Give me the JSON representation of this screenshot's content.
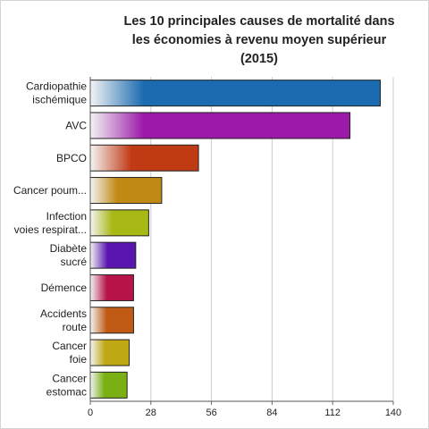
{
  "chart_data": {
    "type": "bar",
    "orientation": "horizontal",
    "title_lines": [
      "Les 10 principales causes de mortalité dans",
      "les économies à revenu moyen supérieur",
      "(2015)"
    ],
    "categories": [
      [
        "Cardiopathie",
        "ischémique"
      ],
      [
        "AVC"
      ],
      [
        "BPCO"
      ],
      [
        "Cancer poum..."
      ],
      [
        "Infection",
        "voies respirat..."
      ],
      [
        "Diabète",
        "sucré"
      ],
      [
        "Démence"
      ],
      [
        "Accidents",
        "route"
      ],
      [
        "Cancer",
        "foie"
      ],
      [
        "Cancer",
        "estomac"
      ]
    ],
    "values": [
      134,
      120,
      50,
      33,
      27,
      21,
      20,
      20,
      18,
      17
    ],
    "colors": [
      "#1a6bb0",
      "#9b1aa8",
      "#c03a14",
      "#c08a14",
      "#a8b814",
      "#5a14b0",
      "#b8144a",
      "#c05a14",
      "#c0a814",
      "#7ab014"
    ],
    "xlim": [
      0,
      140
    ],
    "xticks": [
      "0",
      "28",
      "56",
      "84",
      "112",
      "140"
    ],
    "grid": true
  }
}
